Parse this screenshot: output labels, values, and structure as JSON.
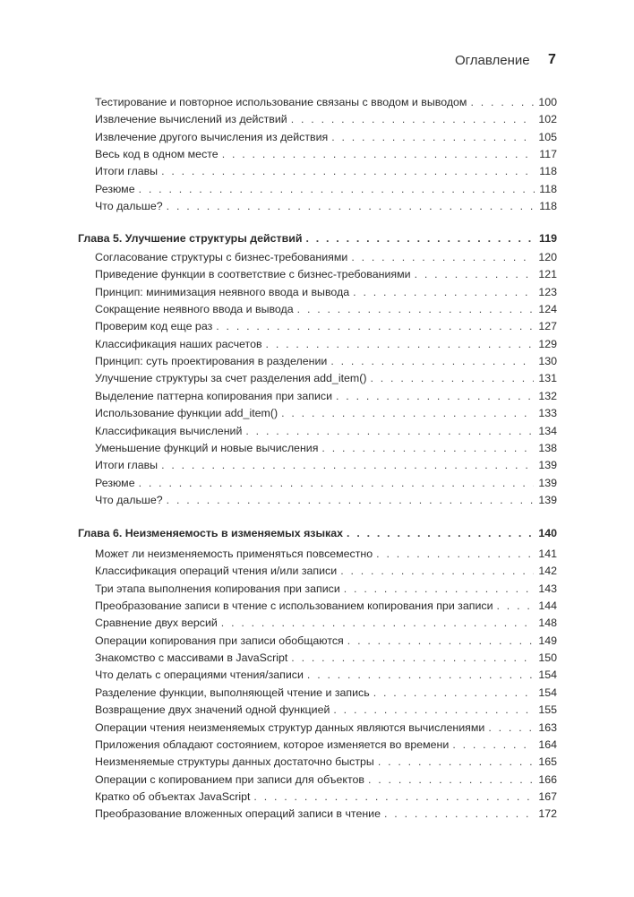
{
  "header": {
    "title": "Оглавление",
    "page_number": "7"
  },
  "intro_items": [
    {
      "title": "Тестирование и повторное использование связаны с вводом и выводом",
      "page": "100"
    },
    {
      "title": "Извлечение вычислений из действий",
      "page": "102"
    },
    {
      "title": "Извлечение другого вычисления из действия",
      "page": "105"
    },
    {
      "title": "Весь код в одном месте",
      "page": "117"
    },
    {
      "title": "Итоги главы",
      "page": "118"
    },
    {
      "title": "Резюме",
      "page": "118"
    },
    {
      "title": "Что дальше?",
      "page": "118"
    }
  ],
  "chapters": [
    {
      "title": "Глава 5. Улучшение структуры действий",
      "page": "119",
      "items": [
        {
          "title": "Согласование структуры с бизнес-требованиями",
          "page": "120"
        },
        {
          "title": "Приведение функции в соответствие с бизнес-требованиями",
          "page": "121"
        },
        {
          "title": "Принцип: минимизация неявного ввода и вывода",
          "page": "123"
        },
        {
          "title": "Сокращение неявного ввода и вывода",
          "page": "124"
        },
        {
          "title": "Проверим код еще раз",
          "page": "127"
        },
        {
          "title": "Классификация наших расчетов",
          "page": "129"
        },
        {
          "title": "Принцип: суть проектирования в разделении",
          "page": "130"
        },
        {
          "title": "Улучшение структуры за счет разделения add_item()",
          "page": "131"
        },
        {
          "title": "Выделение паттерна копирования при записи",
          "page": "132"
        },
        {
          "title": "Использование функции add_item()",
          "page": "133"
        },
        {
          "title": "Классификация вычислений",
          "page": "134"
        },
        {
          "title": "Уменьшение функций и новые вычисления",
          "page": "138"
        },
        {
          "title": "Итоги главы",
          "page": "139"
        },
        {
          "title": "Резюме",
          "page": "139"
        },
        {
          "title": "Что дальше?",
          "page": "139"
        }
      ]
    },
    {
      "title": "Глава 6. Неизменяемость в изменяемых языках",
      "page": "140",
      "items": [
        {
          "title": "Может ли неизменяемость применяться повсеместно",
          "page": "141"
        },
        {
          "title": "Классификация операций чтения и/или записи",
          "page": "142"
        },
        {
          "title": "Три этапа выполнения копирования при записи",
          "page": "143"
        },
        {
          "title": "Преобразование записи в чтение с использованием копирования при записи",
          "page": "144"
        },
        {
          "title": "Сравнение двух версий",
          "page": "148"
        },
        {
          "title": "Операции копирования при записи обобщаются",
          "page": "149"
        },
        {
          "title": "Знакомство с массивами в JavaScript",
          "page": "150"
        },
        {
          "title": "Что делать с операциями чтения/записи",
          "page": "154"
        },
        {
          "title": "Разделение функции, выполняющей чтение и запись",
          "page": "154"
        },
        {
          "title": "Возвращение двух значений одной функцией",
          "page": "155"
        },
        {
          "title": "Операции чтения неизменяемых структур данных являются вычислениями",
          "page": "163"
        },
        {
          "title": "Приложения обладают состоянием, которое изменяется во времени",
          "page": "164"
        },
        {
          "title": "Неизменяемые структуры данных достаточно быстры",
          "page": "165"
        },
        {
          "title": "Операции с копированием при записи для объектов",
          "page": "166"
        },
        {
          "title": "Кратко об объектах JavaScript",
          "page": "167"
        },
        {
          "title": "Преобразование вложенных операций записи в чтение",
          "page": "172"
        }
      ]
    }
  ]
}
